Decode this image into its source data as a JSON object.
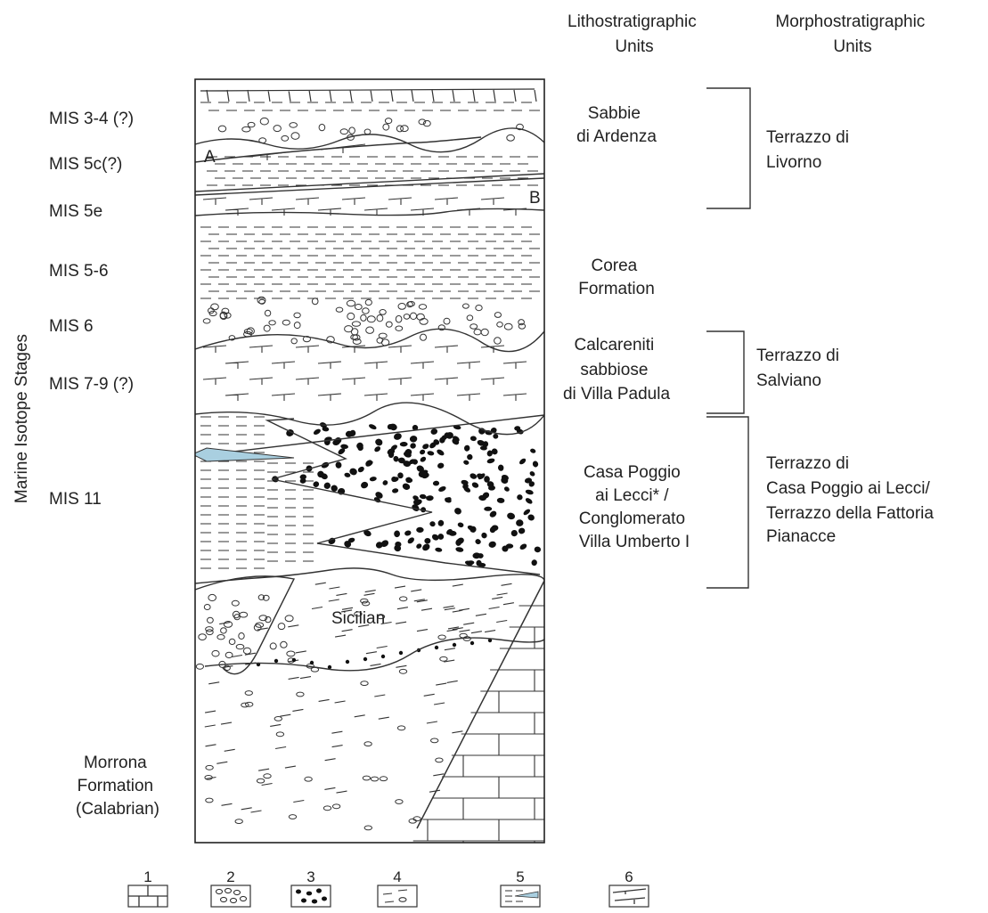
{
  "headers": {
    "litho": [
      "Lithostratigraphic",
      "Units"
    ],
    "morpho": [
      "Morphostratigraphic",
      "Units"
    ]
  },
  "axis_label": "Marine Isotope Stages",
  "stages": [
    "MIS 3-4 (?)",
    "MIS 5c(?)",
    "MIS 5e",
    "MIS 5-6",
    "MIS 6",
    "MIS 7-9 (?)",
    "MIS 11"
  ],
  "morrona": [
    "Morrona",
    "Formation",
    "(Calabrian)"
  ],
  "litho_units": {
    "sabbie": [
      "Sabbie",
      "di Ardenza"
    ],
    "corea": [
      "Corea",
      "Formation"
    ],
    "calcareniti": [
      "Calcareniti",
      "sabbiose",
      "di Villa Padula"
    ],
    "casa_poggio": [
      "Casa Poggio",
      "ai Lecci* /",
      "Conglomerato",
      "Villa Umberto I"
    ]
  },
  "morpho_units": {
    "livorno": [
      "Terrazzo di",
      " Livorno"
    ],
    "salviano": [
      "Terrazzo di",
      "Salviano"
    ],
    "casa_poggio": [
      "Terrazzo di",
      "Casa Poggio ai Lecci/",
      "Terrazzo della Fattoria",
      "Pianacce"
    ]
  },
  "markers": {
    "a": "A",
    "b": "B"
  },
  "sicilian": "Sicilian",
  "legend": [
    "1",
    "2",
    "3",
    "4",
    "5",
    "6"
  ],
  "colors": {
    "lens": "#a9cfe0",
    "ink": "#333333",
    "pebble": "#111111"
  }
}
